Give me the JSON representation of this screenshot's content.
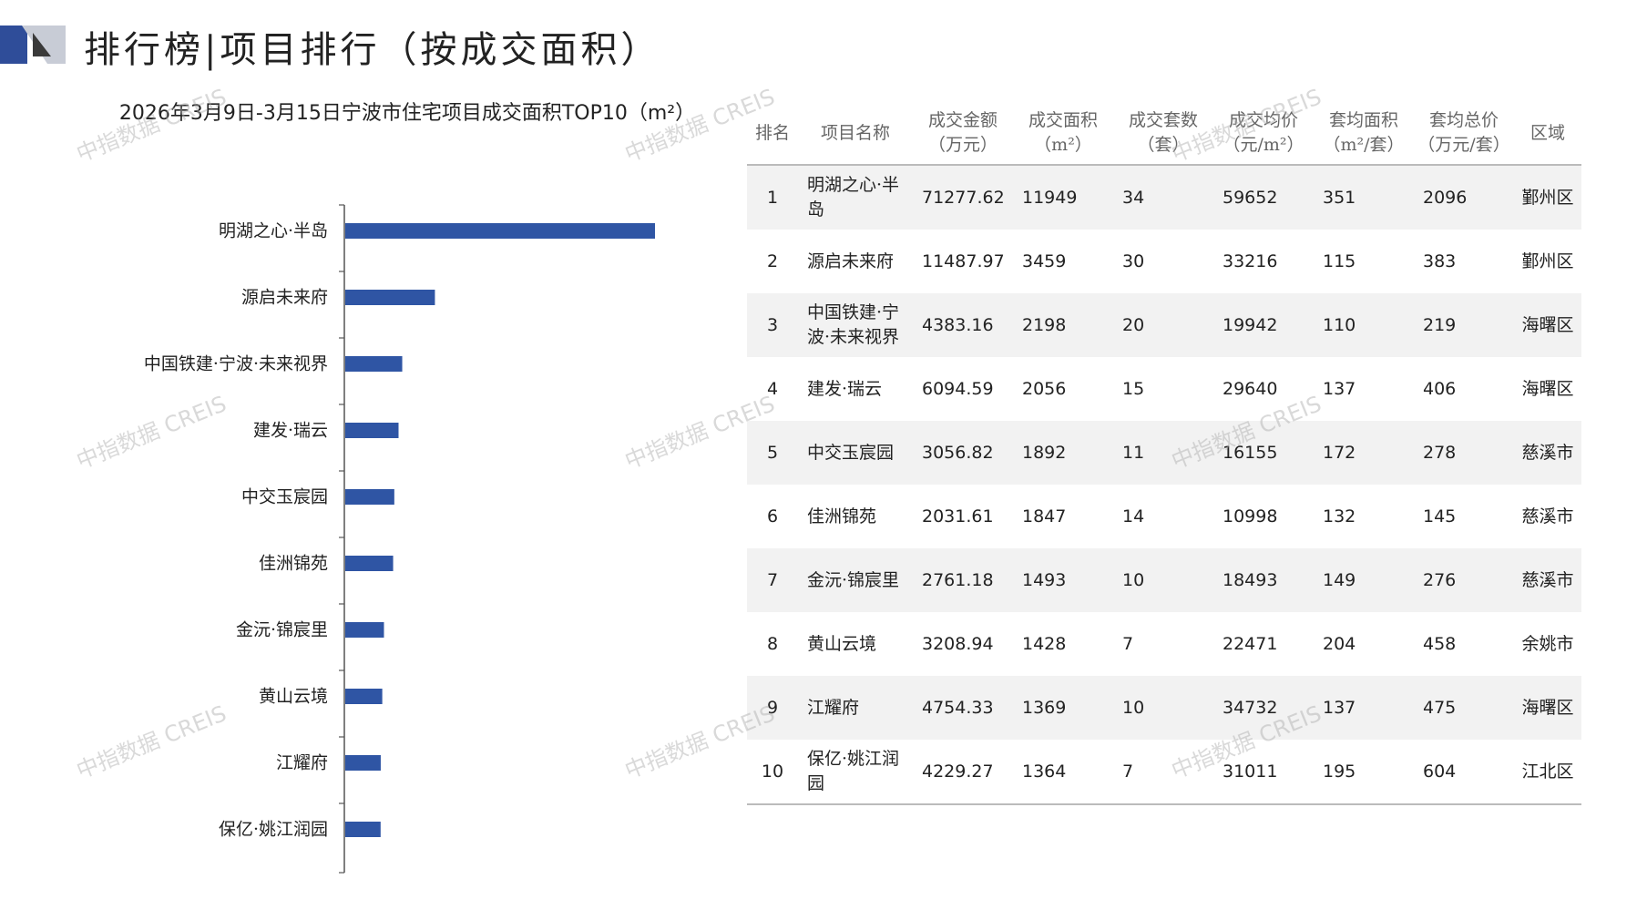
{
  "page": {
    "title": "排行榜|项目排行（按成交面积）",
    "watermark": "中指数据 CREIS"
  },
  "colors": {
    "bar": "#2f55a4",
    "deco_dark": "#2f4d99",
    "deco_light": "#c8ccd6",
    "row_stripe": "#f2f2f2"
  },
  "chart_data": {
    "type": "bar",
    "orientation": "horizontal",
    "title": "2026年3月9日-3月15日宁波市住宅项目成交面积TOP10（m²）",
    "categories": [
      "明湖之心·半岛",
      "源启未来府",
      "中国铁建·宁波·未来视界",
      "建发·瑞云",
      "中交玉宸园",
      "佳洲锦苑",
      "金沅·锦宸里",
      "黄山云境",
      "江耀府",
      "保亿·姚江润园"
    ],
    "values": [
      11949,
      3459,
      2198,
      2056,
      1892,
      1847,
      1493,
      1428,
      1369,
      1364
    ],
    "xlim": [
      0,
      14000
    ],
    "grid": false,
    "legend": "none"
  },
  "table": {
    "headers": [
      [
        "排名"
      ],
      [
        "项目名称"
      ],
      [
        "成交金额",
        "（万元）"
      ],
      [
        "成交面积",
        "（m²）"
      ],
      [
        "成交套数",
        "（套）"
      ],
      [
        "成交均价",
        "（元/m²）"
      ],
      [
        "套均面积",
        "（m²/套）"
      ],
      [
        "套均总价",
        "（万元/套）"
      ],
      [
        "区域"
      ]
    ],
    "rows": [
      {
        "rank": "1",
        "name": "明湖之心·半岛",
        "amount": "71277.62",
        "area": "11949",
        "units": "34",
        "price": "59652",
        "avg_area": "351",
        "avg_total": "2096",
        "region": "鄞州区"
      },
      {
        "rank": "2",
        "name": "源启未来府",
        "amount": "11487.97",
        "area": "3459",
        "units": "30",
        "price": "33216",
        "avg_area": "115",
        "avg_total": "383",
        "region": "鄞州区"
      },
      {
        "rank": "3",
        "name": "中国铁建·宁波·未来视界",
        "amount": "4383.16",
        "area": "2198",
        "units": "20",
        "price": "19942",
        "avg_area": "110",
        "avg_total": "219",
        "region": "海曙区"
      },
      {
        "rank": "4",
        "name": "建发·瑞云",
        "amount": "6094.59",
        "area": "2056",
        "units": "15",
        "price": "29640",
        "avg_area": "137",
        "avg_total": "406",
        "region": "海曙区"
      },
      {
        "rank": "5",
        "name": "中交玉宸园",
        "amount": "3056.82",
        "area": "1892",
        "units": "11",
        "price": "16155",
        "avg_area": "172",
        "avg_total": "278",
        "region": "慈溪市"
      },
      {
        "rank": "6",
        "name": "佳洲锦苑",
        "amount": "2031.61",
        "area": "1847",
        "units": "14",
        "price": "10998",
        "avg_area": "132",
        "avg_total": "145",
        "region": "慈溪市"
      },
      {
        "rank": "7",
        "name": "金沅·锦宸里",
        "amount": "2761.18",
        "area": "1493",
        "units": "10",
        "price": "18493",
        "avg_area": "149",
        "avg_total": "276",
        "region": "慈溪市"
      },
      {
        "rank": "8",
        "name": "黄山云境",
        "amount": "3208.94",
        "area": "1428",
        "units": "7",
        "price": "22471",
        "avg_area": "204",
        "avg_total": "458",
        "region": "余姚市"
      },
      {
        "rank": "9",
        "name": "江耀府",
        "amount": "4754.33",
        "area": "1369",
        "units": "10",
        "price": "34732",
        "avg_area": "137",
        "avg_total": "475",
        "region": "海曙区"
      },
      {
        "rank": "10",
        "name": "保亿·姚江润园",
        "amount": "4229.27",
        "area": "1364",
        "units": "7",
        "price": "31011",
        "avg_area": "195",
        "avg_total": "604",
        "region": "江北区"
      }
    ]
  }
}
